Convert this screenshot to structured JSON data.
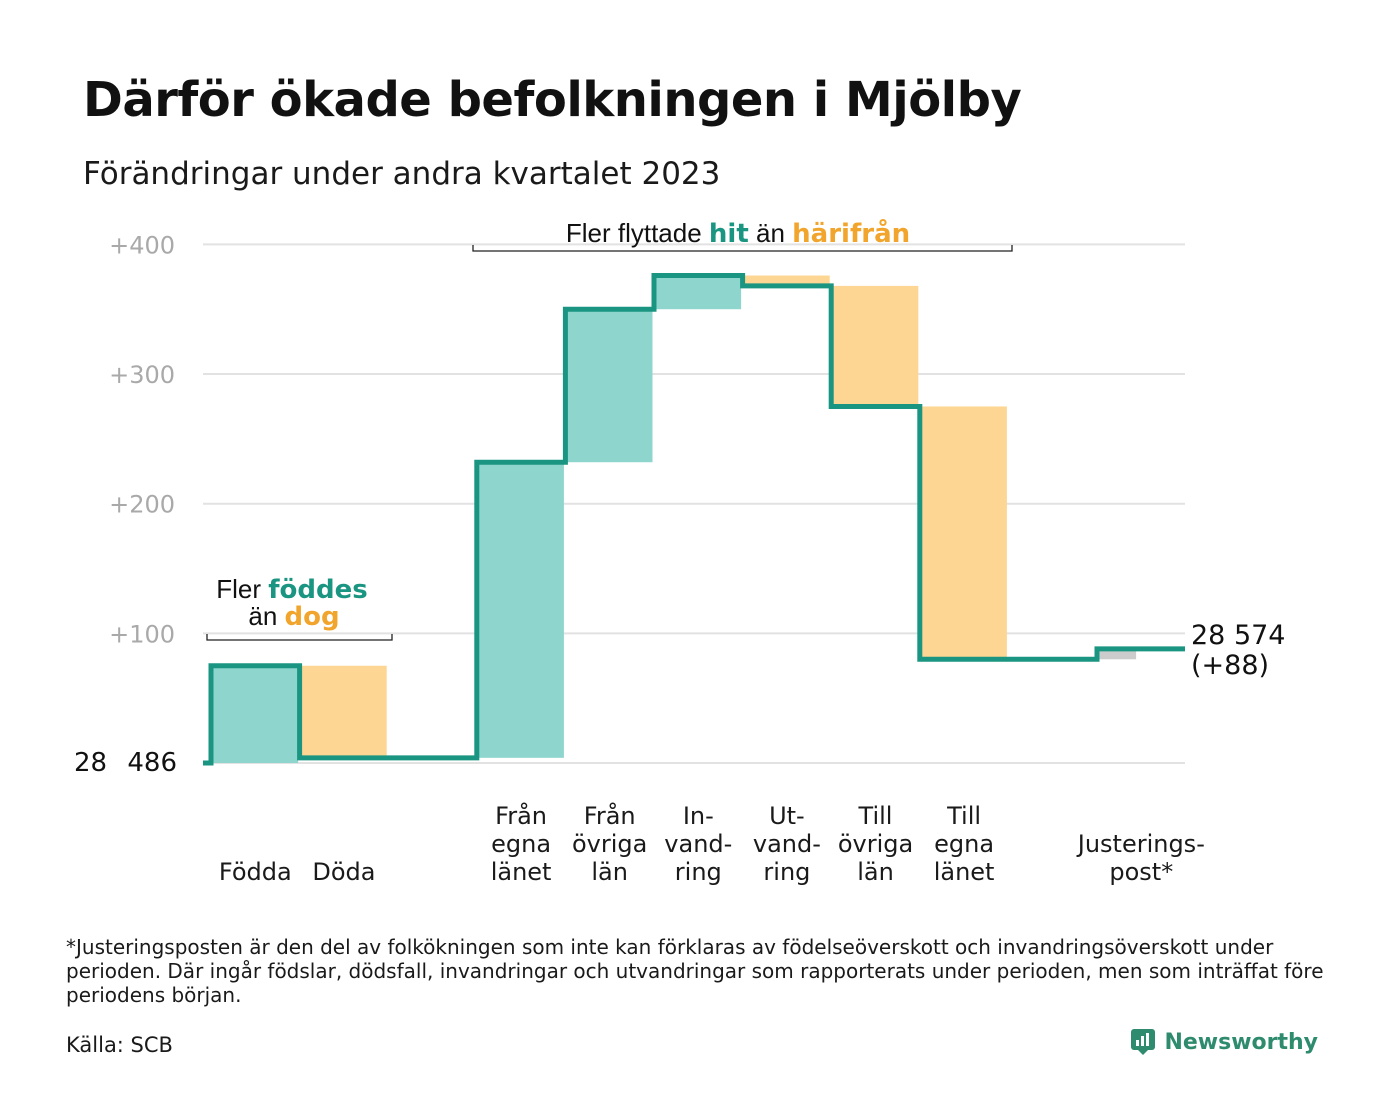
{
  "header": {
    "title": "Därför ökade befolkningen i Mjölby",
    "subtitle": "Förändringar under andra kvartalet 2023"
  },
  "colors": {
    "increase": "#8dd5cd",
    "decrease": "#fcd692",
    "line": "#1a9582",
    "adjustment": "#cccccc",
    "grid": "#e2e2e2",
    "axis_text": "#a9a9a9",
    "accent_teal": "#1a9582",
    "accent_orange": "#f1a52c"
  },
  "chart_data": {
    "type": "waterfall",
    "start_label": "28 486",
    "start_value": 0,
    "end_label_line1": "28 574",
    "end_label_line2": "(+88)",
    "y_ticks": [
      {
        "value": 100,
        "label": "+100"
      },
      {
        "value": 200,
        "label": "+200"
      },
      {
        "value": 300,
        "label": "+300"
      },
      {
        "value": 400,
        "label": "+400"
      }
    ],
    "ylim": [
      0,
      400
    ],
    "grid": true,
    "steps": [
      {
        "label": [
          "",
          "",
          "Födda"
        ],
        "change": 75,
        "kind": "increase"
      },
      {
        "label": [
          "",
          "",
          "Döda"
        ],
        "change": -71,
        "kind": "decrease"
      },
      {
        "label": [
          "",
          "",
          ""
        ],
        "change": 0,
        "kind": "gap"
      },
      {
        "label": [
          "Från",
          "egna",
          "länet"
        ],
        "change": 228,
        "kind": "increase"
      },
      {
        "label": [
          "Från",
          "övriga",
          "län"
        ],
        "change": 118,
        "kind": "increase"
      },
      {
        "label": [
          "In-",
          "vand-",
          "ring"
        ],
        "change": 26,
        "kind": "increase"
      },
      {
        "label": [
          "Ut-",
          "vand-",
          "ring"
        ],
        "change": -8,
        "kind": "decrease"
      },
      {
        "label": [
          "Till",
          "övriga",
          "län"
        ],
        "change": -93,
        "kind": "decrease"
      },
      {
        "label": [
          "Till",
          "egna",
          "länet"
        ],
        "change": -195,
        "kind": "decrease"
      },
      {
        "label": [
          "",
          "",
          ""
        ],
        "change": 0,
        "kind": "gap"
      },
      {
        "label": [
          "",
          "Justerings-",
          "post*"
        ],
        "change": 8,
        "kind": "adjustment"
      }
    ],
    "annotations": {
      "births": {
        "line1_a": "Fler ",
        "line1_b": "föddes",
        "line2_a": "än ",
        "line2_b": "dog"
      },
      "moves": {
        "a": "Fler flyttade ",
        "b": "hit",
        "c": " än ",
        "d": "härifrån"
      }
    }
  },
  "footer": {
    "footnote": "*Justeringsposten är den del av folkökningen som inte kan förklaras av födelseöverskott och invandringsöverskott under perioden. Där ingår födslar, dödsfall, invandringar och utvandringar som rapporterats under perioden, men som inträffat före periodens början.",
    "source": "Källa: SCB",
    "brand": "Newsworthy"
  }
}
